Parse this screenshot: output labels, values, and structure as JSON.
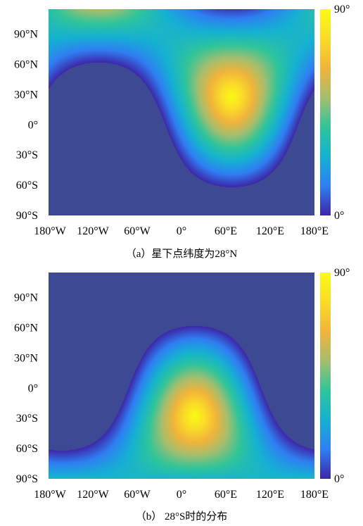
{
  "chart_data": [
    {
      "type": "heatmap",
      "caption": "（a）星下点纬度为28°N",
      "subsolar_lat": 28,
      "subsolar_lon": 68,
      "colorscale": [
        "#3e26a8",
        "#2f7ff3",
        "#15b1d2",
        "#2fc59a",
        "#a5be6e",
        "#f1b43a",
        "#fbdb28",
        "#f9fb14"
      ],
      "mask_color": "#3e4993",
      "value_range": [
        0,
        90
      ],
      "colorbar_labels": [
        "90°",
        "0°"
      ],
      "xlim": [
        -180,
        180
      ],
      "ylim": [
        -90,
        90
      ],
      "xticks": [
        {
          "value": -180,
          "label": "180°W"
        },
        {
          "value": -120,
          "label": "120°W"
        },
        {
          "value": -60,
          "label": "60°W"
        },
        {
          "value": 0,
          "label": "0°"
        },
        {
          "value": 60,
          "label": "60°E"
        },
        {
          "value": 120,
          "label": "120°E"
        },
        {
          "value": 180,
          "label": "180°E"
        }
      ],
      "yticks": [
        {
          "value": 90,
          "label": "90°N"
        },
        {
          "value": 60,
          "label": "60°N"
        },
        {
          "value": 30,
          "label": "30°N"
        },
        {
          "value": 0,
          "label": "0°"
        },
        {
          "value": -30,
          "label": "30°S"
        },
        {
          "value": -60,
          "label": "60°S"
        },
        {
          "value": -90,
          "label": "90°S"
        }
      ]
    },
    {
      "type": "heatmap",
      "caption": "（b） 28°S时的分布",
      "subsolar_lat": -28,
      "subsolar_lon": 18,
      "colorscale": [
        "#3e26a8",
        "#2f7ff3",
        "#15b1d2",
        "#2fc59a",
        "#a5be6e",
        "#f1b43a",
        "#fbdb28",
        "#f9fb14"
      ],
      "mask_color": "#3e4993",
      "value_range": [
        0,
        90
      ],
      "colorbar_labels": [
        "90°",
        "0°"
      ],
      "xlim": [
        -180,
        180
      ],
      "ylim": [
        -90,
        90
      ],
      "xticks": [
        {
          "value": -180,
          "label": "180°W"
        },
        {
          "value": -120,
          "label": "120°W"
        },
        {
          "value": -60,
          "label": "60°W"
        },
        {
          "value": 0,
          "label": "0°"
        },
        {
          "value": 60,
          "label": "60°E"
        },
        {
          "value": 120,
          "label": "120°E"
        },
        {
          "value": 180,
          "label": "180°E"
        }
      ],
      "yticks": [
        {
          "value": 90,
          "label": "90°N"
        },
        {
          "value": 60,
          "label": "60°N"
        },
        {
          "value": 30,
          "label": "30°N"
        },
        {
          "value": 0,
          "label": "0°"
        },
        {
          "value": -30,
          "label": "30°S"
        },
        {
          "value": -60,
          "label": "60°S"
        },
        {
          "value": -90,
          "label": "90°S"
        }
      ]
    }
  ]
}
